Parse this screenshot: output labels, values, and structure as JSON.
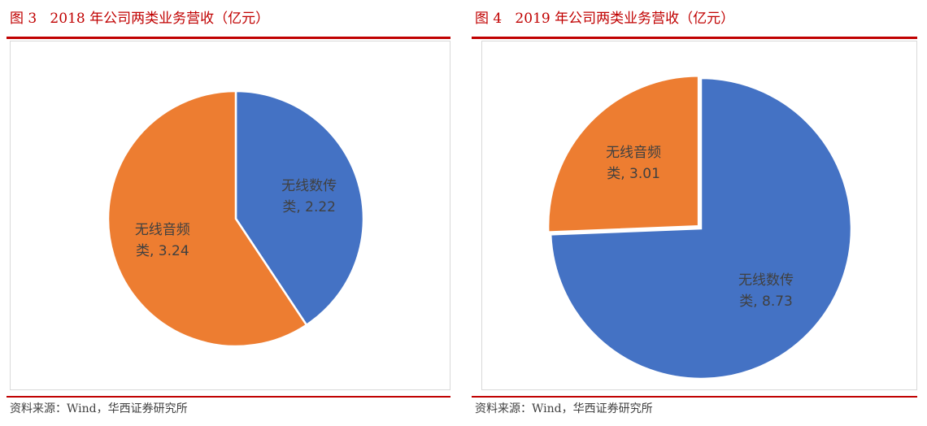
{
  "chart_data": [
    {
      "type": "pie",
      "title": "图 3   2018 年公司两类业务营收（亿元）",
      "categories": [
        "无线数传类",
        "无线音频类"
      ],
      "values": [
        2.22,
        3.24
      ],
      "colors": [
        "#4472c4",
        "#ed7d31"
      ],
      "source": "资料来源：Wind，华西证券研究所"
    },
    {
      "type": "pie",
      "title": "图 4   2019 年公司两类业务营收（亿元）",
      "categories": [
        "无线数传类",
        "无线音频类"
      ],
      "values": [
        8.73,
        3.01
      ],
      "colors": [
        "#4472c4",
        "#ed7d31"
      ],
      "source": "资料来源：Wind，华西证券研究所"
    }
  ]
}
